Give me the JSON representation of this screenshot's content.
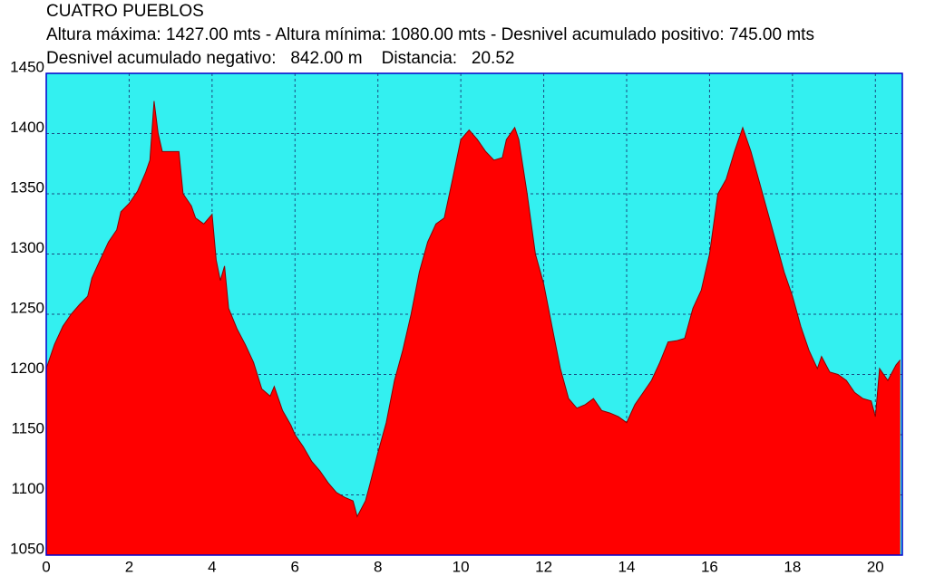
{
  "chart_data": {
    "type": "area",
    "title": "CUATRO PUEBLOS",
    "subtitle": "Altura máxima: 1427.00 mts - Altura mínima: 1080.00 mts - Desnivel acumulado positivo: 745.00 mts",
    "summary": "Desnivel acumulado negativo:   842.00 m    Distancia:   20.52",
    "x": [
      0,
      0.2,
      0.4,
      0.6,
      0.8,
      1.0,
      1.1,
      1.3,
      1.5,
      1.7,
      1.8,
      2.0,
      2.2,
      2.4,
      2.5,
      2.6,
      2.7,
      2.8,
      3.0,
      3.2,
      3.3,
      3.5,
      3.6,
      3.8,
      4.0,
      4.1,
      4.2,
      4.3,
      4.4,
      4.6,
      4.8,
      5.0,
      5.2,
      5.4,
      5.5,
      5.7,
      5.9,
      6.0,
      6.2,
      6.4,
      6.6,
      6.8,
      7.0,
      7.2,
      7.4,
      7.5,
      7.7,
      7.8,
      8.0,
      8.2,
      8.4,
      8.6,
      8.8,
      9.0,
      9.2,
      9.4,
      9.6,
      9.8,
      10.0,
      10.2,
      10.4,
      10.6,
      10.8,
      11.0,
      11.1,
      11.3,
      11.4,
      11.6,
      11.8,
      12.0,
      12.2,
      12.4,
      12.6,
      12.8,
      13.0,
      13.2,
      13.4,
      13.6,
      13.8,
      14.0,
      14.2,
      14.4,
      14.6,
      14.8,
      15.0,
      15.2,
      15.4,
      15.6,
      15.8,
      16.0,
      16.2,
      16.4,
      16.6,
      16.8,
      17.0,
      17.2,
      17.4,
      17.6,
      17.8,
      18.0,
      18.2,
      18.4,
      18.6,
      18.7,
      18.9,
      19.1,
      19.3,
      19.5,
      19.7,
      19.9,
      20.0,
      20.1,
      20.3,
      20.5,
      20.6
    ],
    "series": [
      {
        "color": "#ff0000",
        "values": [
          1205,
          1225,
          1240,
          1250,
          1258,
          1265,
          1280,
          1295,
          1310,
          1320,
          1335,
          1342,
          1352,
          1368,
          1378,
          1427,
          1400,
          1385,
          1385,
          1385,
          1350,
          1340,
          1330,
          1325,
          1333,
          1295,
          1278,
          1290,
          1255,
          1238,
          1225,
          1210,
          1188,
          1182,
          1190,
          1170,
          1158,
          1150,
          1140,
          1128,
          1120,
          1110,
          1102,
          1098,
          1095,
          1082,
          1095,
          1108,
          1135,
          1160,
          1195,
          1220,
          1250,
          1285,
          1310,
          1325,
          1330,
          1362,
          1395,
          1403,
          1395,
          1385,
          1378,
          1380,
          1395,
          1405,
          1395,
          1350,
          1300,
          1275,
          1240,
          1205,
          1180,
          1172,
          1175,
          1180,
          1170,
          1168,
          1165,
          1160,
          1175,
          1185,
          1195,
          1210,
          1227,
          1228,
          1230,
          1255,
          1270,
          1300,
          1350,
          1362,
          1385,
          1405,
          1385,
          1360,
          1335,
          1310,
          1285,
          1265,
          1240,
          1220,
          1205,
          1215,
          1202,
          1200,
          1195,
          1185,
          1180,
          1178,
          1165,
          1205,
          1195,
          1208,
          1212
        ]
      }
    ],
    "xlim": [
      0,
      20.65
    ],
    "ylim": [
      1050,
      1450
    ],
    "xticks": [
      0,
      2,
      4,
      6,
      8,
      10,
      12,
      14,
      16,
      18,
      20
    ],
    "yticks": [
      1050,
      1100,
      1150,
      1200,
      1250,
      1300,
      1350,
      1400,
      1450
    ],
    "grid": true,
    "background": "#33f0f0"
  }
}
